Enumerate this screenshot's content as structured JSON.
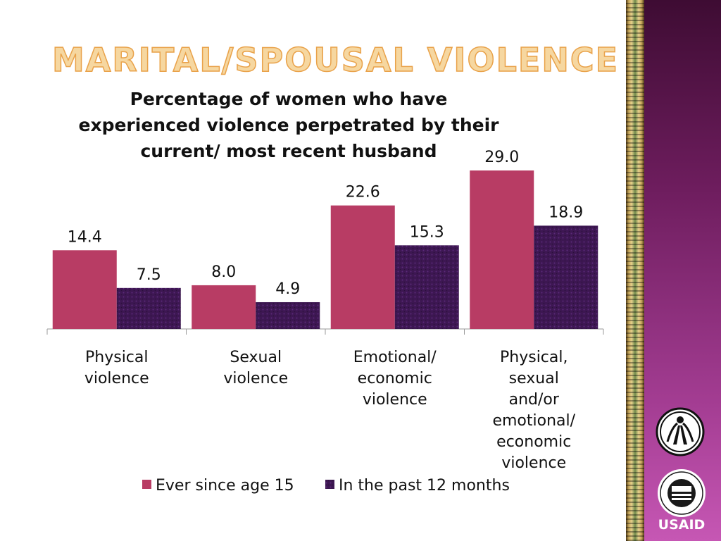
{
  "slide": {
    "title": "MARITAL/SPOUSAL VIOLENCE",
    "usaid_text": "USAID"
  },
  "colors": {
    "series1": "#b83c64",
    "series2": "#3d1752",
    "title_fill": "#f6d7a0",
    "title_stroke": "#e9a24a",
    "side_panel": "#7a2468"
  },
  "icons": [
    "figures-circle-icon",
    "usaid-seal-icon"
  ],
  "chart_data": {
    "type": "bar",
    "title": "Percentage of women who have experienced violence perpetrated by their current/ most recent husband",
    "categories": [
      [
        "Physical",
        "violence"
      ],
      [
        "Sexual",
        "violence"
      ],
      [
        "Emotional/",
        "economic",
        "violence"
      ],
      [
        "Physical,",
        "sexual",
        "and/or",
        "emotional/",
        "economic",
        "violence"
      ]
    ],
    "series": [
      {
        "name": "Ever since age 15",
        "values": [
          14.4,
          8.0,
          22.6,
          29.0
        ],
        "labels": [
          "14.4",
          "8.0",
          "22.6",
          "29.0"
        ]
      },
      {
        "name": "In the past 12 months",
        "values": [
          7.5,
          4.9,
          15.3,
          18.9
        ],
        "labels": [
          "7.5",
          "4.9",
          "15.3",
          "18.9"
        ]
      }
    ],
    "ylim": [
      0,
      29
    ],
    "grid": false,
    "legend": "bottom",
    "data_labels": true
  }
}
